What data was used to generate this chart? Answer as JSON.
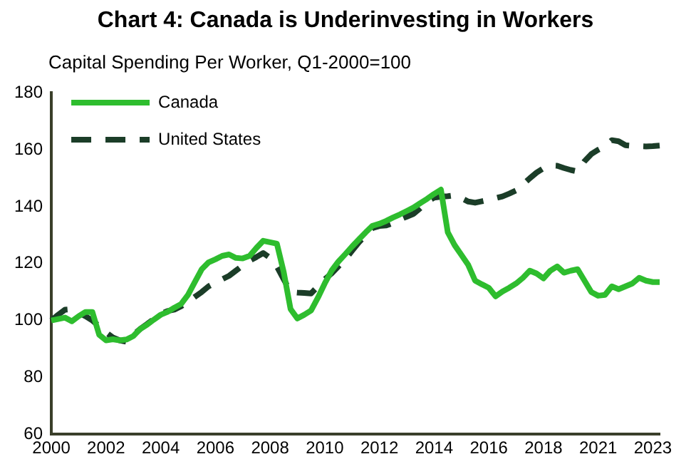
{
  "chart_data": {
    "type": "line",
    "title": "Chart 4: Canada is Underinvesting in Workers",
    "subtitle": "Capital Spending Per Worker, Q1-2000=100",
    "categories": [
      "2000",
      null,
      null,
      null,
      null,
      null,
      null,
      null,
      "2002",
      null,
      null,
      null,
      null,
      null,
      null,
      null,
      "2004",
      null,
      null,
      null,
      null,
      null,
      null,
      null,
      "2006",
      null,
      null,
      null,
      null,
      null,
      null,
      null,
      "2008",
      null,
      null,
      null,
      null,
      null,
      null,
      null,
      "2010",
      null,
      null,
      null,
      null,
      null,
      null,
      null,
      "2012",
      null,
      null,
      null,
      null,
      null,
      null,
      null,
      "2014",
      null,
      null,
      null,
      null,
      null,
      null,
      null,
      "2016",
      null,
      null,
      null,
      null,
      null,
      null,
      null,
      "2018",
      null,
      null,
      null,
      null,
      null,
      null,
      null,
      "2021",
      null,
      null,
      null,
      null,
      null,
      null,
      null,
      "2023",
      null
    ],
    "ylim": [
      60,
      180
    ],
    "yticks": [
      60,
      80,
      100,
      120,
      140,
      160,
      180
    ],
    "grid": false,
    "legend": "top left",
    "marker": "none",
    "series": [
      {
        "name": "Canada",
        "color": "#2ebd2e",
        "line_style": "solid",
        "values": [
          100,
          100.5,
          101,
          99.7,
          101.5,
          103,
          103,
          95,
          93,
          93.4,
          93,
          93.3,
          94.5,
          97,
          98.5,
          100.3,
          102,
          103,
          104.5,
          105.8,
          109,
          113.5,
          118,
          120.4,
          121.5,
          122.7,
          123.2,
          122,
          121.8,
          122.7,
          125.5,
          128,
          127.5,
          127,
          117,
          104,
          100.7,
          102,
          103.5,
          108,
          113,
          117.5,
          120.7,
          123.3,
          126,
          128.5,
          131,
          133.3,
          134,
          135,
          136.2,
          137.3,
          138.5,
          139.7,
          141.3,
          142.8,
          144.5,
          146,
          131,
          126.5,
          123,
          119.5,
          114,
          112.7,
          111.5,
          108.5,
          110.2,
          111.5,
          113,
          115,
          117.5,
          116.5,
          114.8,
          117.5,
          119,
          116.8,
          117.5,
          118,
          114,
          110,
          108.7,
          109,
          112,
          111,
          112,
          113,
          115,
          114,
          113.5,
          113.5
        ]
      },
      {
        "name": "United States",
        "color": "#1b3d28",
        "line_style": "dashed",
        "values": [
          100,
          102,
          103.8,
          104,
          102.8,
          101.5,
          100,
          98,
          95.8,
          94,
          93,
          92.5,
          95,
          97,
          98.7,
          100.5,
          102.3,
          103.3,
          103.8,
          105,
          106.5,
          108.3,
          110,
          112,
          113.3,
          114.5,
          115.7,
          117.5,
          119.3,
          121,
          122.3,
          123.7,
          122,
          119,
          114.5,
          110,
          109.8,
          109.7,
          109.5,
          112,
          114.5,
          116.5,
          119,
          121.5,
          124.5,
          127.5,
          130,
          132.5,
          133.2,
          133.4,
          134.3,
          135.5,
          136.5,
          137.5,
          139.5,
          141.8,
          143.2,
          143.5,
          143.7,
          144,
          143,
          141.8,
          141.4,
          141.9,
          142.4,
          143,
          143.6,
          144.6,
          145.7,
          147.8,
          150,
          152,
          153.5,
          154.5,
          154.4,
          153.6,
          152.9,
          152.4,
          156,
          158.5,
          160,
          161.2,
          163.4,
          163,
          161.6,
          161.4,
          161.3,
          161.2,
          161.3,
          161.5
        ]
      }
    ]
  }
}
